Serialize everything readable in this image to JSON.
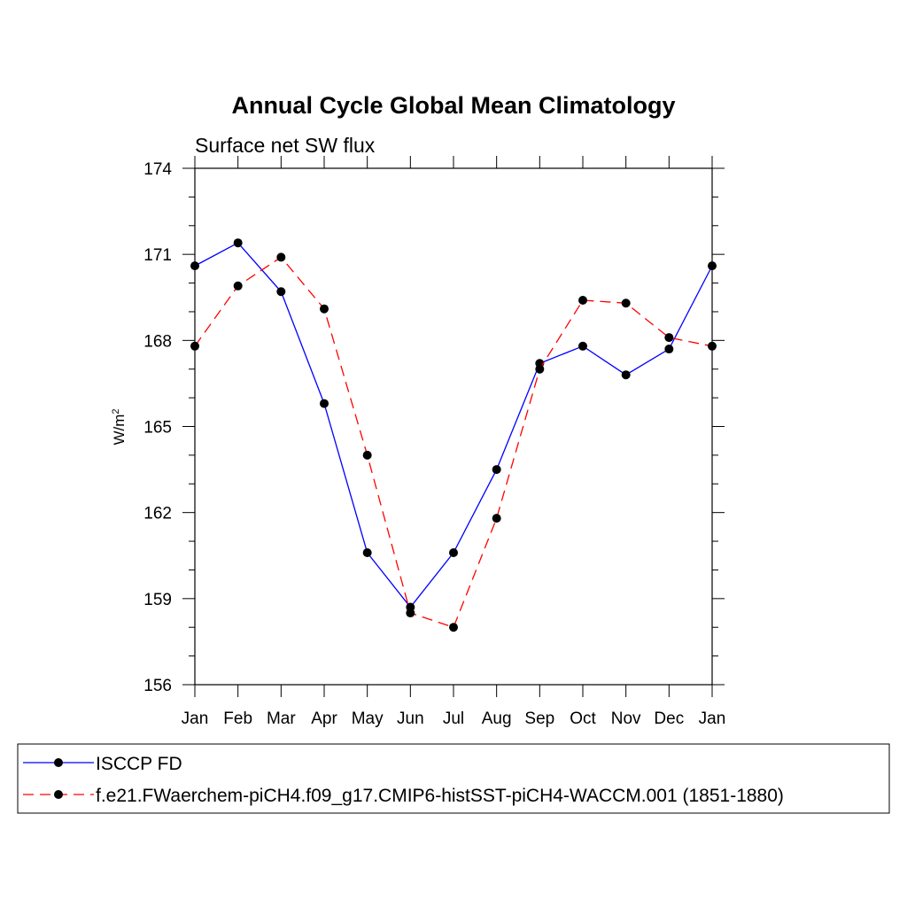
{
  "chart_data": {
    "type": "line",
    "title": "Annual Cycle Global Mean Climatology",
    "subtitle": "Surface net SW flux",
    "ylabel": "W/m",
    "ylabel_superscript": "2",
    "xlabel": "",
    "categories": [
      "Jan",
      "Feb",
      "Mar",
      "Apr",
      "May",
      "Jun",
      "Jul",
      "Aug",
      "Sep",
      "Oct",
      "Nov",
      "Dec",
      "Jan"
    ],
    "ylim": [
      156,
      174
    ],
    "yticks": [
      "156",
      "159",
      "162",
      "165",
      "168",
      "171",
      "174"
    ],
    "grid": false,
    "legend_position": "bottom",
    "series": [
      {
        "name": "ISCCP FD",
        "color": "#0000ff",
        "style": "solid",
        "marker": "filled-circle",
        "values": [
          170.6,
          171.4,
          169.7,
          165.8,
          160.6,
          158.7,
          160.6,
          163.5,
          167.2,
          167.8,
          166.8,
          167.7,
          170.6
        ]
      },
      {
        "name": "f.e21.FWaerchem-piCH4.f09_g17.CMIP6-histSST-piCH4-WACCM.001 (1851-1880)",
        "color": "#ff0000",
        "style": "dashed",
        "marker": "filled-circle",
        "values": [
          167.8,
          169.9,
          170.9,
          169.1,
          164.0,
          158.5,
          158.0,
          161.8,
          167.0,
          169.4,
          169.3,
          168.1,
          167.8
        ]
      }
    ]
  }
}
